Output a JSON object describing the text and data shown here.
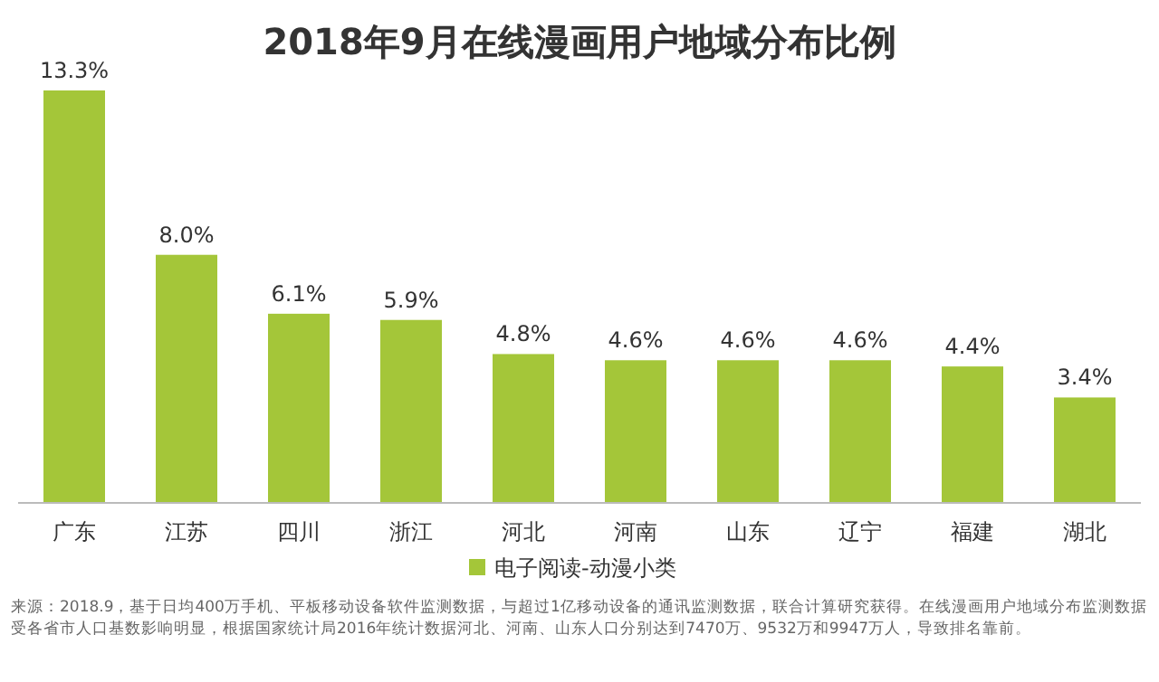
{
  "chart_data": {
    "type": "bar",
    "title": "2018年9月在线漫画用户地域分布比例",
    "categories": [
      "广东",
      "江苏",
      "四川",
      "浙江",
      "河北",
      "河南",
      "山东",
      "辽宁",
      "福建",
      "湖北"
    ],
    "series": [
      {
        "name": "电子阅读-动漫小类",
        "color": "#a4c639",
        "values": [
          13.3,
          8.0,
          6.1,
          5.9,
          4.8,
          4.6,
          4.6,
          4.6,
          4.4,
          3.4
        ],
        "value_labels": [
          "13.3%",
          "8.0%",
          "6.1%",
          "5.9%",
          "4.8%",
          "4.6%",
          "4.6%",
          "4.6%",
          "4.4%",
          "3.4%"
        ]
      }
    ],
    "legend": "bottom",
    "annotations": [
      "来源：2018.9，基于日均400万手机、平板移动设备软件监测数据，与超过1亿移动设备的通讯监测数据，联合计算研究获得。在线漫画用户地域分布监测数据受各省市人口基数影响明显，根据国家统计局2016年统计数据河北、河南、山东人口分别达到7470万、9532万和9947万人，导致排名靠前。"
    ]
  }
}
